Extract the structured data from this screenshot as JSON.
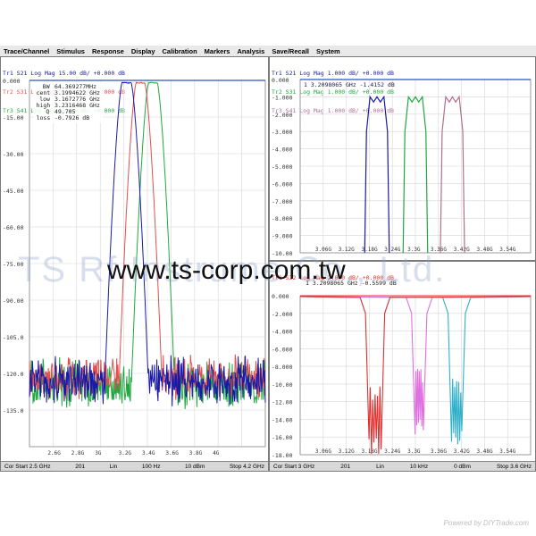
{
  "menu": [
    "Trace/Channel",
    "Stimulus",
    "Response",
    "Display",
    "Calibration",
    "Markers",
    "Analysis",
    "Save/Recall",
    "System"
  ],
  "left": {
    "traces": [
      {
        "label": "Tr1 S21 Log Mag 15.00 dB/ +0.000 dB",
        "color": "#1a1aa8"
      },
      {
        "label": "Tr2 S31 Log Mag 15.00 dB/ +0.000 dB",
        "color": "#e05050"
      },
      {
        "label": "Tr3 S41 Log Mag 15.00 dB/ +0.000 dB",
        "color": "#20a840"
      }
    ],
    "y_ticks": [
      "0.000",
      "-15.00",
      "-30.00",
      "-45.00",
      "-60.00",
      "-75.00",
      "-90.00",
      "-105.0",
      "-120.0",
      "-135.0"
    ],
    "x_ticks": [
      "2.6G",
      "2.8G",
      "3G",
      "3.2G",
      "3.4G",
      "3.6G",
      "3.8G",
      "4G"
    ],
    "marker": {
      "rows": [
        [
          "BW",
          "64.369277MHz"
        ],
        [
          "cent",
          "3.1994622 GHz"
        ],
        [
          "low",
          "3.1672776 GHz"
        ],
        [
          "high",
          "3.2316468 GHz"
        ],
        [
          "Q",
          "49.705"
        ],
        [
          "loss",
          "-0.7926 dB"
        ]
      ]
    },
    "status": [
      "Cor Start 2.5 GHz",
      "201",
      "Lin",
      "100 Hz",
      "10 dBm",
      "Stop 4.2 GHz"
    ]
  },
  "right_top": {
    "traces": [
      {
        "label": "Tr1 S21 Log Mag 1.000 dB/ +0.000 dB",
        "color": "#1a1aa8"
      },
      {
        "label": "Tr2 S31 Log Mag 1.000 dB/ +0.000 dB",
        "color": "#20a840"
      },
      {
        "label": "Tr3 S41 Log Mag 1.000 dB/ +0.000 dB",
        "color": "#b07090"
      }
    ],
    "marker_text": "1  3.2098065 GHz  -1.4152 dB",
    "y_ticks": [
      "0.000",
      "-1.000",
      "-2.000",
      "-3.000",
      "-4.000",
      "-5.000",
      "-6.000",
      "-7.000",
      "-8.000",
      "-9.000",
      "-10.00"
    ],
    "x_ticks": [
      "3.06G",
      "3.12G",
      "3.18G",
      "3.24G",
      "3.3G",
      "3.36G",
      "3.42G",
      "3.48G",
      "3.54G"
    ]
  },
  "right_bottom": {
    "traces": [
      {
        "label": "Tr1 S22 Log Mag 2.000 dB/ +0.000 dB",
        "color": "#e03030"
      }
    ],
    "marker_text": "1  3.2098065 GHz  -0.5599 dB",
    "y_ticks": [
      "0.000",
      "-2.000",
      "-4.000",
      "-6.000",
      "-8.000",
      "-10.00",
      "-12.00",
      "-14.00",
      "-16.00",
      "-18.00"
    ],
    "x_ticks": [
      "3.06G",
      "3.12G",
      "3.18G",
      "3.24G",
      "3.3G",
      "3.36G",
      "3.42G",
      "3.48G",
      "3.54G"
    ],
    "status": [
      "Cor Start 3 GHz",
      "201",
      "Lin",
      "10 kHz",
      "0 dBm",
      "Stop 3.6 GHz"
    ]
  },
  "watermark_company": "TS  Rf   Instrume        Co., Ltd.",
  "watermark_url": "www.ts-corp.com.tw",
  "footer": "Powered by DIYTrade.com"
}
